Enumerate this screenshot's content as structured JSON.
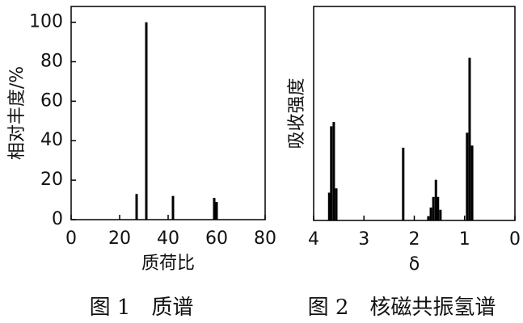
{
  "chart_data": [
    {
      "type": "bar",
      "xlabel": "质荷比",
      "ylabel": "相对丰度/%",
      "caption": "图 1　质谱",
      "x": [
        27,
        31,
        42,
        59,
        60
      ],
      "values": [
        13,
        100,
        12,
        11,
        9
      ],
      "color": "#000000",
      "xlim": [
        0,
        80
      ],
      "xticks": [
        0,
        20,
        40,
        60,
        80
      ],
      "ylim": [
        0,
        108
      ],
      "yticks": [
        0,
        20,
        40,
        60,
        80,
        100
      ]
    },
    {
      "type": "bar",
      "xlabel": "δ",
      "ylabel": "吸收强度",
      "caption": "图 2　核磁共振氢谱",
      "x": [
        3.69,
        3.65,
        3.6,
        3.55,
        2.22,
        1.72,
        1.67,
        1.62,
        1.57,
        1.53,
        1.48,
        0.95,
        0.9,
        0.85
      ],
      "values": [
        13,
        44,
        46,
        15,
        34,
        2,
        6,
        11,
        19,
        11,
        5,
        41,
        76,
        35
      ],
      "color": "#000000",
      "xlim": [
        4,
        0
      ],
      "xticks": [
        4,
        3,
        2,
        1,
        0
      ],
      "ylim": [
        0,
        100
      ]
    }
  ]
}
